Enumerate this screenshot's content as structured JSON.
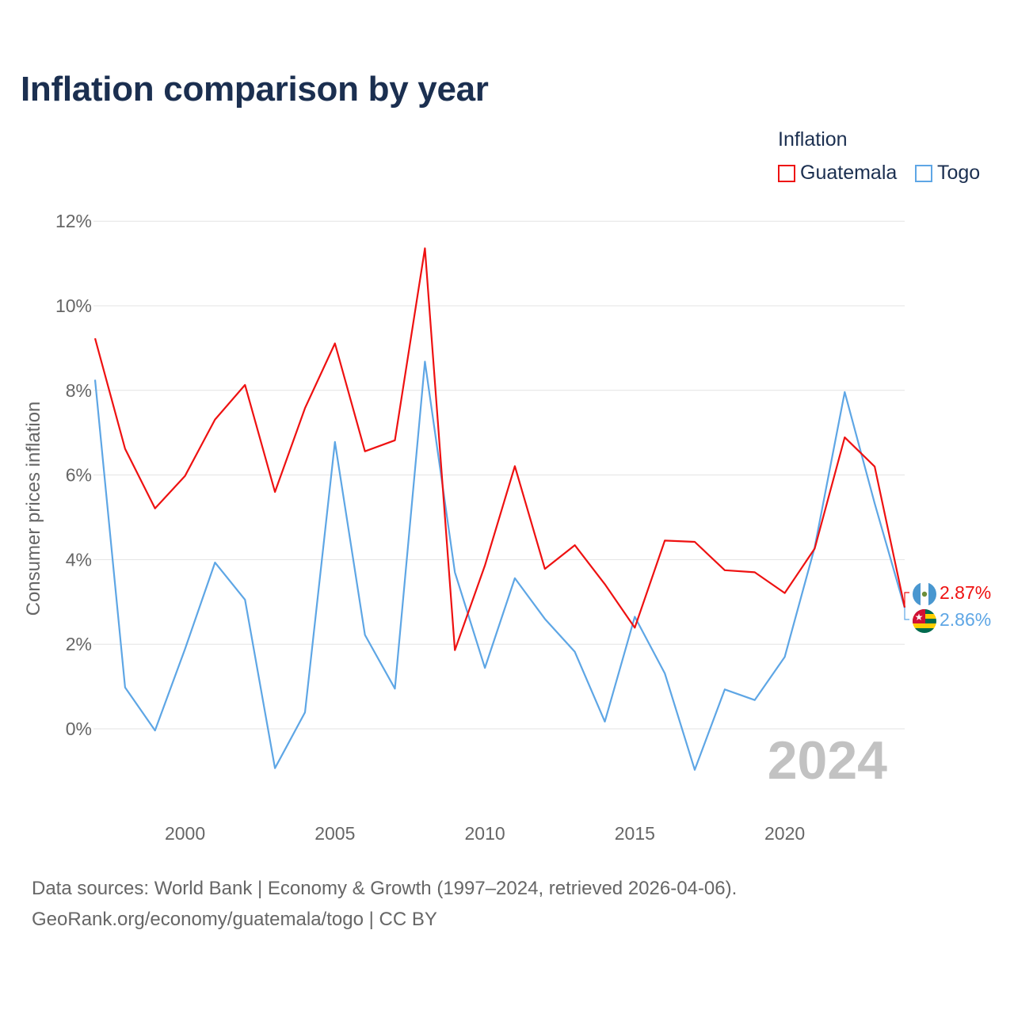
{
  "page": {
    "title": "Inflation comparison by year"
  },
  "legend": {
    "title": "Inflation"
  },
  "chart_data": {
    "type": "line",
    "title": "Inflation comparison by year",
    "xlabel": "",
    "ylabel": "Consumer prices inflation",
    "x": [
      1997,
      1998,
      1999,
      2000,
      2001,
      2002,
      2003,
      2004,
      2005,
      2006,
      2007,
      2008,
      2009,
      2010,
      2011,
      2012,
      2013,
      2014,
      2015,
      2016,
      2017,
      2018,
      2019,
      2020,
      2021,
      2022,
      2023,
      2024
    ],
    "xticks": [
      "2000",
      "2005",
      "2010",
      "2015",
      "2020"
    ],
    "yticks": [
      "0%",
      "2%",
      "4%",
      "6%",
      "8%",
      "10%",
      "12%"
    ],
    "ylim": [
      -2,
      12
    ],
    "grid": true,
    "legend_position": "top-right",
    "year_watermark": "2024",
    "series": [
      {
        "name": "Guatemala",
        "color": "#ee1111",
        "values": [
          9.23,
          6.62,
          5.21,
          5.98,
          7.31,
          8.13,
          5.6,
          7.58,
          9.11,
          6.56,
          6.82,
          11.36,
          1.86,
          3.86,
          6.21,
          3.78,
          4.34,
          3.42,
          2.39,
          4.45,
          4.42,
          3.75,
          3.7,
          3.21,
          4.26,
          6.89,
          6.2,
          2.87
        ],
        "end_label": "2.87%"
      },
      {
        "name": "Togo",
        "color": "#5ea6e5",
        "values": [
          8.25,
          0.98,
          -0.04,
          1.89,
          3.93,
          3.05,
          -0.93,
          0.39,
          6.78,
          2.22,
          0.95,
          8.68,
          3.7,
          1.44,
          3.56,
          2.6,
          1.82,
          0.17,
          2.65,
          1.31,
          -0.97,
          0.93,
          0.68,
          1.7,
          4.29,
          7.96,
          5.33,
          2.86
        ],
        "end_label": "2.86%"
      }
    ]
  },
  "footer": {
    "line1": "Data sources: World Bank | Economy & Growth (1997–2024, retrieved 2026-04-06).",
    "line2": "GeoRank.org/economy/guatemala/togo | CC BY"
  }
}
